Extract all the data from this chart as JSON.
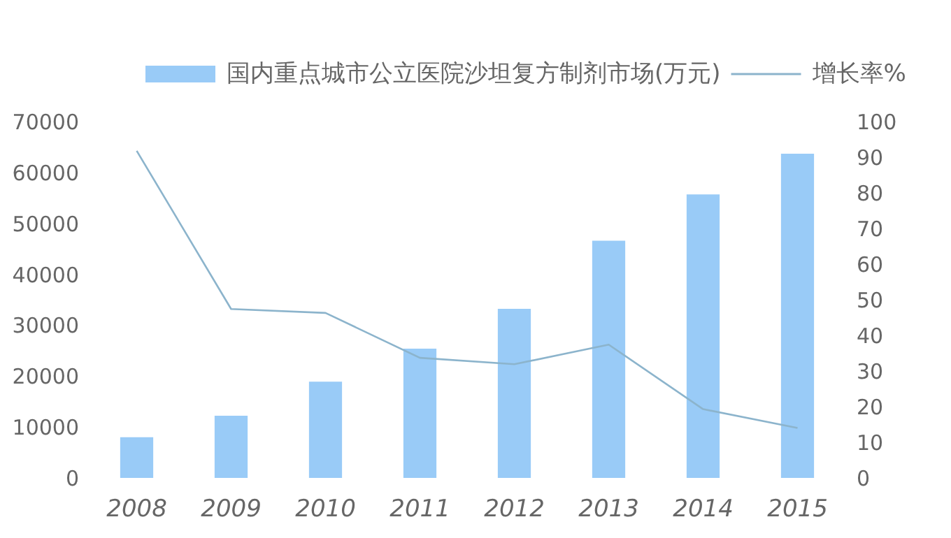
{
  "chart_data": {
    "type": "bar",
    "categories": [
      "2008",
      "2009",
      "2010",
      "2011",
      "2012",
      "2013",
      "2014",
      "2015"
    ],
    "series": [
      {
        "name": "国内重点城市公立医院沙坦复方制剂市场(万元)",
        "color": "#99cbf7",
        "values": [
          8000,
          12200,
          18900,
          25400,
          33200,
          46600,
          55700,
          63700
        ]
      },
      {
        "name": "增长率%",
        "type": "line",
        "axis": "y2",
        "color": "#8cb4cc",
        "values": [
          91.8,
          47.4,
          46.3,
          33.7,
          31.9,
          37.4,
          19.3,
          14.0
        ]
      }
    ],
    "ylim": [
      0,
      70000
    ],
    "yticks": [
      0,
      10000,
      20000,
      30000,
      40000,
      50000,
      60000,
      70000
    ],
    "y2lim": [
      0,
      100
    ],
    "y2ticks": [
      0,
      10,
      20,
      30,
      40,
      50,
      60,
      70,
      80,
      90,
      100
    ],
    "grid": false,
    "legend": "top",
    "marker": "none",
    "line_style": "solid"
  }
}
